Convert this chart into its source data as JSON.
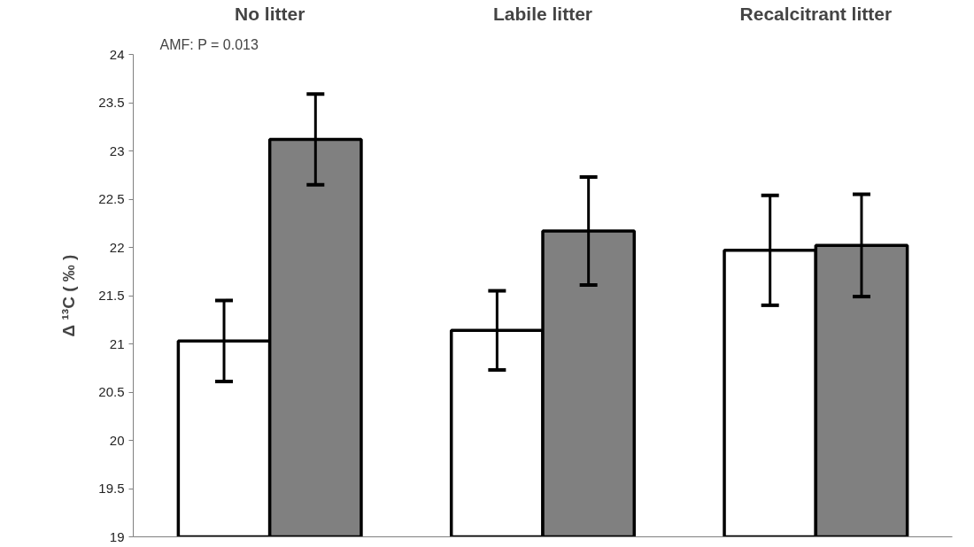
{
  "chart_data": {
    "type": "bar",
    "categories": [
      "No litter",
      "Labile litter",
      "Recalcitrant litter"
    ],
    "ylabel": "Δ ¹³C ( ‰ )",
    "annotations": [
      "AMF: P = 0.013"
    ],
    "series": [
      {
        "color": "#ffffff",
        "values": [
          21.03,
          21.14,
          21.97
        ],
        "errors": [
          0.42,
          0.41,
          0.57
        ]
      },
      {
        "color": "#808080",
        "values": [
          23.12,
          22.17,
          22.02
        ],
        "errors": [
          0.47,
          0.56,
          0.53
        ]
      }
    ],
    "ylim": [
      19,
      24
    ],
    "yticks": [
      19,
      19.5,
      20,
      20.5,
      21,
      21.5,
      22,
      22.5,
      23,
      23.5,
      24
    ],
    "grid": false
  }
}
